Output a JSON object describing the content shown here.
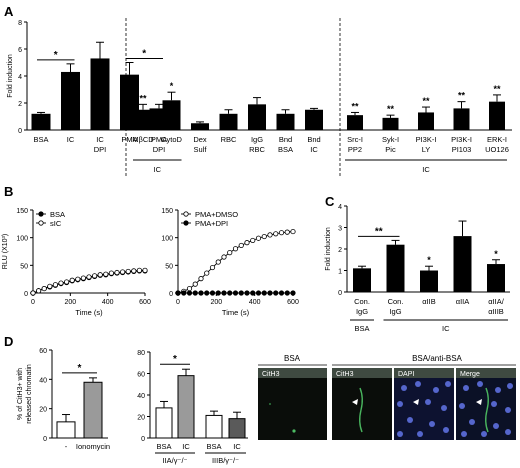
{
  "panel_letters": {
    "a": "A",
    "b": "B",
    "c": "C",
    "d": "D"
  },
  "sig": {
    "one": "*",
    "two": "**"
  },
  "chart_data": [
    {
      "panel": "A",
      "type": "bar",
      "ylabel": "Fold induction",
      "ylim": [
        0,
        8
      ],
      "yticks": [
        0,
        2,
        4,
        6,
        8
      ],
      "groups": [
        {
          "id": "g1",
          "categories": [
            [
              "BSA"
            ],
            [
              "IC"
            ],
            [
              "IC",
              "DPI"
            ],
            [
              "PMA"
            ],
            [
              "PMA",
              "DPI"
            ]
          ],
          "values": [
            1.2,
            4.3,
            5.3,
            4.1,
            1.6
          ],
          "errors": [
            0.1,
            0.6,
            1.2,
            0.9,
            0.3
          ],
          "marks": [
            "",
            "",
            "",
            "",
            ""
          ],
          "brackets": [
            {
              "from": 0,
              "to": 1,
              "label": "*"
            },
            {
              "from": 3,
              "to": 4,
              "label": "*"
            }
          ]
        },
        {
          "id": "g2",
          "categories": [
            [
              "MβCD"
            ],
            [
              "CytoD"
            ],
            [
              "Dex",
              "Sulf"
            ],
            [
              "RBC"
            ],
            [
              "IgG",
              "RBC"
            ],
            [
              "Bnd",
              "BSA"
            ],
            [
              "Bnd",
              "IC"
            ]
          ],
          "values": [
            1.5,
            2.2,
            0.5,
            1.2,
            1.9,
            1.2,
            1.5
          ],
          "errors": [
            0.4,
            0.6,
            0.1,
            0.3,
            0.5,
            0.3,
            0.1
          ],
          "marks": [
            "**",
            "*",
            "",
            "",
            "",
            "",
            ""
          ],
          "group_label": {
            "from": 0,
            "to": 1,
            "text": "IC"
          }
        },
        {
          "id": "g3",
          "categories": [
            [
              "Src-I",
              "PP2"
            ],
            [
              "Syk-I",
              "Pic"
            ],
            [
              "PI3K-I",
              "LY"
            ],
            [
              "PI3K-I",
              "PI103"
            ],
            [
              "ERK-I",
              "UO126"
            ]
          ],
          "values": [
            1.1,
            0.9,
            1.3,
            1.6,
            2.1
          ],
          "errors": [
            0.2,
            0.2,
            0.4,
            0.5,
            0.5
          ],
          "marks": [
            "**",
            "**",
            "**",
            "**",
            "**"
          ],
          "group_label": {
            "from": 0,
            "to": 4,
            "text": "IC"
          }
        }
      ]
    },
    {
      "panel": "B-left",
      "type": "line",
      "ylabel": "RLU (X10³)",
      "xlabel": "Time (s)",
      "xlim": [
        0,
        600
      ],
      "ylim": [
        0,
        150
      ],
      "xticks": [
        0,
        200,
        400,
        600
      ],
      "yticks": [
        0,
        50,
        100,
        150
      ],
      "legend": "top-left",
      "series": [
        {
          "name": "BSA",
          "marker": "filled",
          "x": [
            0,
            30,
            60,
            90,
            120,
            150,
            180,
            210,
            240,
            270,
            300,
            330,
            360,
            390,
            420,
            450,
            480,
            510,
            540,
            570,
            600
          ],
          "y": [
            0,
            4,
            8,
            11,
            14,
            17,
            19,
            22,
            24,
            26,
            28,
            30,
            32,
            33,
            35,
            36,
            37,
            38,
            39,
            40,
            40
          ]
        },
        {
          "name": "sIC",
          "marker": "open",
          "x": [
            0,
            30,
            60,
            90,
            120,
            150,
            180,
            210,
            240,
            270,
            300,
            330,
            360,
            390,
            420,
            450,
            480,
            510,
            540,
            570,
            600
          ],
          "y": [
            0,
            4,
            8,
            12,
            15,
            18,
            20,
            23,
            25,
            27,
            29,
            31,
            33,
            34,
            36,
            37,
            38,
            39,
            40,
            41,
            41
          ]
        }
      ]
    },
    {
      "panel": "B-right",
      "type": "line",
      "xlabel": "Time (s)",
      "xlim": [
        0,
        600
      ],
      "ylim": [
        0,
        150
      ],
      "xticks": [
        0,
        200,
        400,
        600
      ],
      "yticks": [
        0,
        50,
        100,
        150
      ],
      "legend": "top-left",
      "series": [
        {
          "name": "PMA+DMSO",
          "marker": "open",
          "x": [
            0,
            30,
            60,
            90,
            120,
            150,
            180,
            210,
            240,
            270,
            300,
            330,
            360,
            390,
            420,
            450,
            480,
            510,
            540,
            570,
            600
          ],
          "y": [
            0,
            3,
            8,
            16,
            26,
            36,
            46,
            56,
            65,
            73,
            80,
            86,
            91,
            95,
            99,
            102,
            105,
            107,
            109,
            110,
            111
          ]
        },
        {
          "name": "PMA+DPI",
          "marker": "filled",
          "x": [
            0,
            30,
            60,
            90,
            120,
            150,
            180,
            210,
            240,
            270,
            300,
            330,
            360,
            390,
            420,
            450,
            480,
            510,
            540,
            570,
            600
          ],
          "y": [
            0,
            0,
            0,
            0,
            0,
            0,
            0,
            0,
            0,
            0,
            0,
            0,
            0,
            0,
            0,
            0,
            0,
            0,
            0,
            0,
            0
          ]
        }
      ]
    },
    {
      "panel": "C",
      "type": "bar",
      "ylabel": "Fold induction",
      "ylim": [
        0,
        4
      ],
      "yticks": [
        0,
        1,
        2,
        3,
        4
      ],
      "categories": [
        [
          "Con.",
          "IgG"
        ],
        [
          "Con.",
          "IgG"
        ],
        [
          "αIIB"
        ],
        [
          "αIIA"
        ],
        [
          "αIIA/",
          "αIIIB"
        ]
      ],
      "values": [
        1.1,
        2.2,
        1.0,
        2.6,
        1.3
      ],
      "errors": [
        0.1,
        0.2,
        0.2,
        0.7,
        0.2
      ],
      "marks": [
        "",
        "",
        "*",
        "",
        "*"
      ],
      "brackets": [
        {
          "from": 0,
          "to": 1,
          "label": "**"
        }
      ],
      "group_labels": [
        {
          "from": 0,
          "to": 0,
          "text": "BSA"
        },
        {
          "from": 1,
          "to": 4,
          "text": "IC"
        }
      ]
    },
    {
      "panel": "D-left",
      "type": "bar",
      "ylabel": [
        "% of CitH3+ with",
        "released chromatin"
      ],
      "ylim": [
        0,
        60
      ],
      "yticks": [
        0,
        20,
        40,
        60
      ],
      "categories": [
        "-",
        "Ionomycin"
      ],
      "values": [
        11,
        38
      ],
      "errors": [
        5,
        3
      ],
      "fills": [
        "white",
        "grey"
      ],
      "brackets": [
        {
          "from": 0,
          "to": 1,
          "label": "*"
        }
      ]
    },
    {
      "panel": "D-middle",
      "type": "bar",
      "ylim": [
        0,
        80
      ],
      "yticks": [
        0,
        20,
        40,
        60,
        80
      ],
      "categories": [
        "BSA",
        "IC",
        "BSA",
        "IC"
      ],
      "values": [
        28,
        58,
        21,
        18
      ],
      "errors": [
        6,
        6,
        4,
        6
      ],
      "fills": [
        "white",
        "grey",
        "white",
        "dark"
      ],
      "brackets": [
        {
          "from": 0,
          "to": 1,
          "label": "*"
        }
      ],
      "group_labels": [
        {
          "from": 0,
          "to": 1,
          "text": "IIA/γ⁻/⁻"
        },
        {
          "from": 2,
          "to": 3,
          "text": "IIIB/γ⁻/⁻"
        }
      ]
    }
  ],
  "micrographs": {
    "bsa_header": "BSA",
    "anti_header": "BSA/anti-BSA",
    "panels": [
      "CitH3",
      "CitH3",
      "DAPI",
      "Merge"
    ]
  }
}
